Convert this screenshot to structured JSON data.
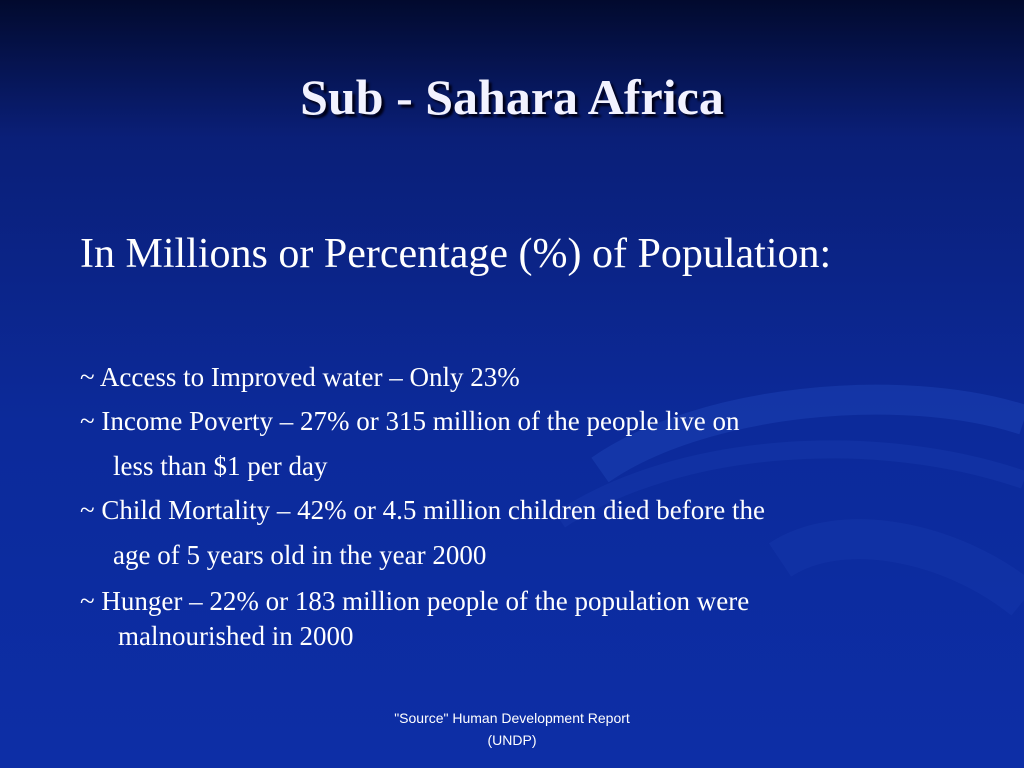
{
  "title": "Sub - Sahara Africa",
  "subtitle": "In Millions or Percentage (%) of Population:",
  "bullets": [
    {
      "lines": [
        "~ Access to Improved water – Only 23%"
      ]
    },
    {
      "lines": [
        "~ Income Poverty – 27% or 315 million of the people live on",
        "less than $1 per day"
      ]
    },
    {
      "lines": [
        "~ Child Mortality – 42% or 4.5 million children died before the",
        "age of 5 years old in the year 2000"
      ]
    },
    {
      "lines": [
        "~ Hunger – 22% or 183 million people of the population were",
        "malnourished in 2000"
      ]
    }
  ],
  "source": [
    "\"Source\" Human Development Report",
    "(UNDP)"
  ]
}
